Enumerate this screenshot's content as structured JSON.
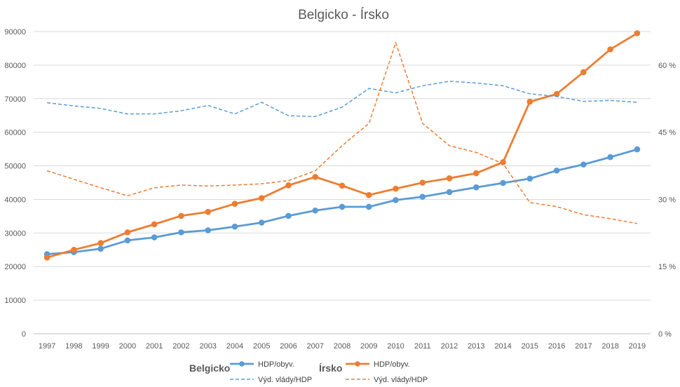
{
  "chart_data": {
    "type": "line",
    "title": "Belgicko - Írsko",
    "categories": [
      "1997",
      "1998",
      "1999",
      "2000",
      "2001",
      "2002",
      "2003",
      "2004",
      "2005",
      "2006",
      "2007",
      "2008",
      "2009",
      "2010",
      "2011",
      "2012",
      "2013",
      "2014",
      "2015",
      "2016",
      "2017",
      "2018",
      "2019"
    ],
    "y_left": {
      "ylim": [
        0,
        90000
      ],
      "ticks": [
        "0",
        "10000",
        "20000",
        "30000",
        "40000",
        "50000",
        "60000",
        "70000",
        "80000",
        "90000"
      ]
    },
    "y_right": {
      "ylim": [
        0,
        67.5
      ],
      "ticks": [
        "0 %",
        "15 %",
        "30 %",
        "45 %",
        "60 %"
      ]
    },
    "grid": true,
    "legend": {
      "position": "bottom",
      "groups": [
        {
          "label": "Belgicko",
          "entries": [
            "HDP/obyv.",
            "Výd. vlády/HDP"
          ]
        },
        {
          "label": "Írsko",
          "entries": [
            "HDP/obyv.",
            "Výd. vlády/HDP"
          ]
        }
      ]
    },
    "series": [
      {
        "name": "HDP/obyv.",
        "group": "Belgicko",
        "axis": "left",
        "style": "solid-markers",
        "color": "#5b9bd5",
        "values": [
          23700,
          24300,
          25300,
          27800,
          28700,
          30200,
          30800,
          31900,
          33100,
          35100,
          36700,
          37800,
          37800,
          39800,
          40800,
          42200,
          43600,
          44900,
          46200,
          48600,
          50400,
          52600,
          54900
        ]
      },
      {
        "name": "HDP/obyv.",
        "group": "Írsko",
        "axis": "left",
        "style": "solid-markers",
        "color": "#ed7d31",
        "values": [
          22700,
          25000,
          27000,
          30200,
          32600,
          35100,
          36300,
          38700,
          40400,
          44200,
          46700,
          44100,
          41300,
          43200,
          45000,
          46300,
          47800,
          51100,
          69100,
          71400,
          77900,
          84700,
          89500
        ]
      },
      {
        "name": "Výd. vlády/HDP",
        "group": "Belgicko",
        "axis": "right",
        "style": "dashed",
        "color": "#5b9bd5",
        "values": [
          51.6,
          50.9,
          50.3,
          49.1,
          49.1,
          49.8,
          51.0,
          49.1,
          51.7,
          48.7,
          48.5,
          50.6,
          54.8,
          53.8,
          55.4,
          56.4,
          56.0,
          55.4,
          53.6,
          53.0,
          51.9,
          52.1,
          51.7
        ]
      },
      {
        "name": "Výd. vlády/HDP",
        "group": "Írsko",
        "axis": "right",
        "style": "dashed",
        "color": "#ed7d31",
        "values": [
          36.4,
          34.5,
          32.6,
          30.8,
          32.6,
          33.2,
          33.0,
          33.2,
          33.5,
          34.2,
          36.4,
          42.0,
          47.0,
          65.0,
          47.0,
          42.0,
          40.5,
          38.0,
          29.3,
          28.4,
          26.6,
          25.7,
          24.6
        ]
      }
    ]
  }
}
